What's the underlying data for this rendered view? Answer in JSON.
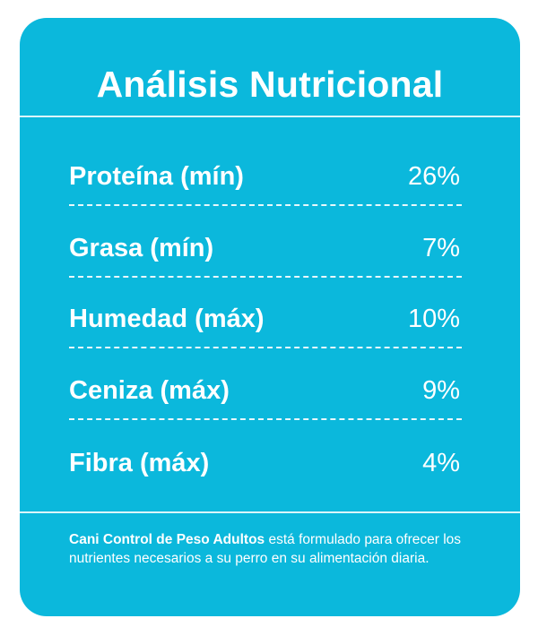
{
  "title": "Análisis Nutricional",
  "rows": [
    {
      "label": "Proteína (mín)",
      "value": "26%"
    },
    {
      "label": "Grasa (mín)",
      "value": "7%"
    },
    {
      "label": "Humedad (máx)",
      "value": "10%"
    },
    {
      "label": "Ceniza (máx)",
      "value": "9%"
    },
    {
      "label": "Fibra (máx)",
      "value": "4%"
    }
  ],
  "footer": {
    "product": "Cani Control de Peso Adultos",
    "text": " está formulado para ofrecer los nutrientes necesarios a su perro en su alimentación diaria."
  },
  "colors": {
    "card_background": "#0bb8dc",
    "text": "#ffffff"
  }
}
